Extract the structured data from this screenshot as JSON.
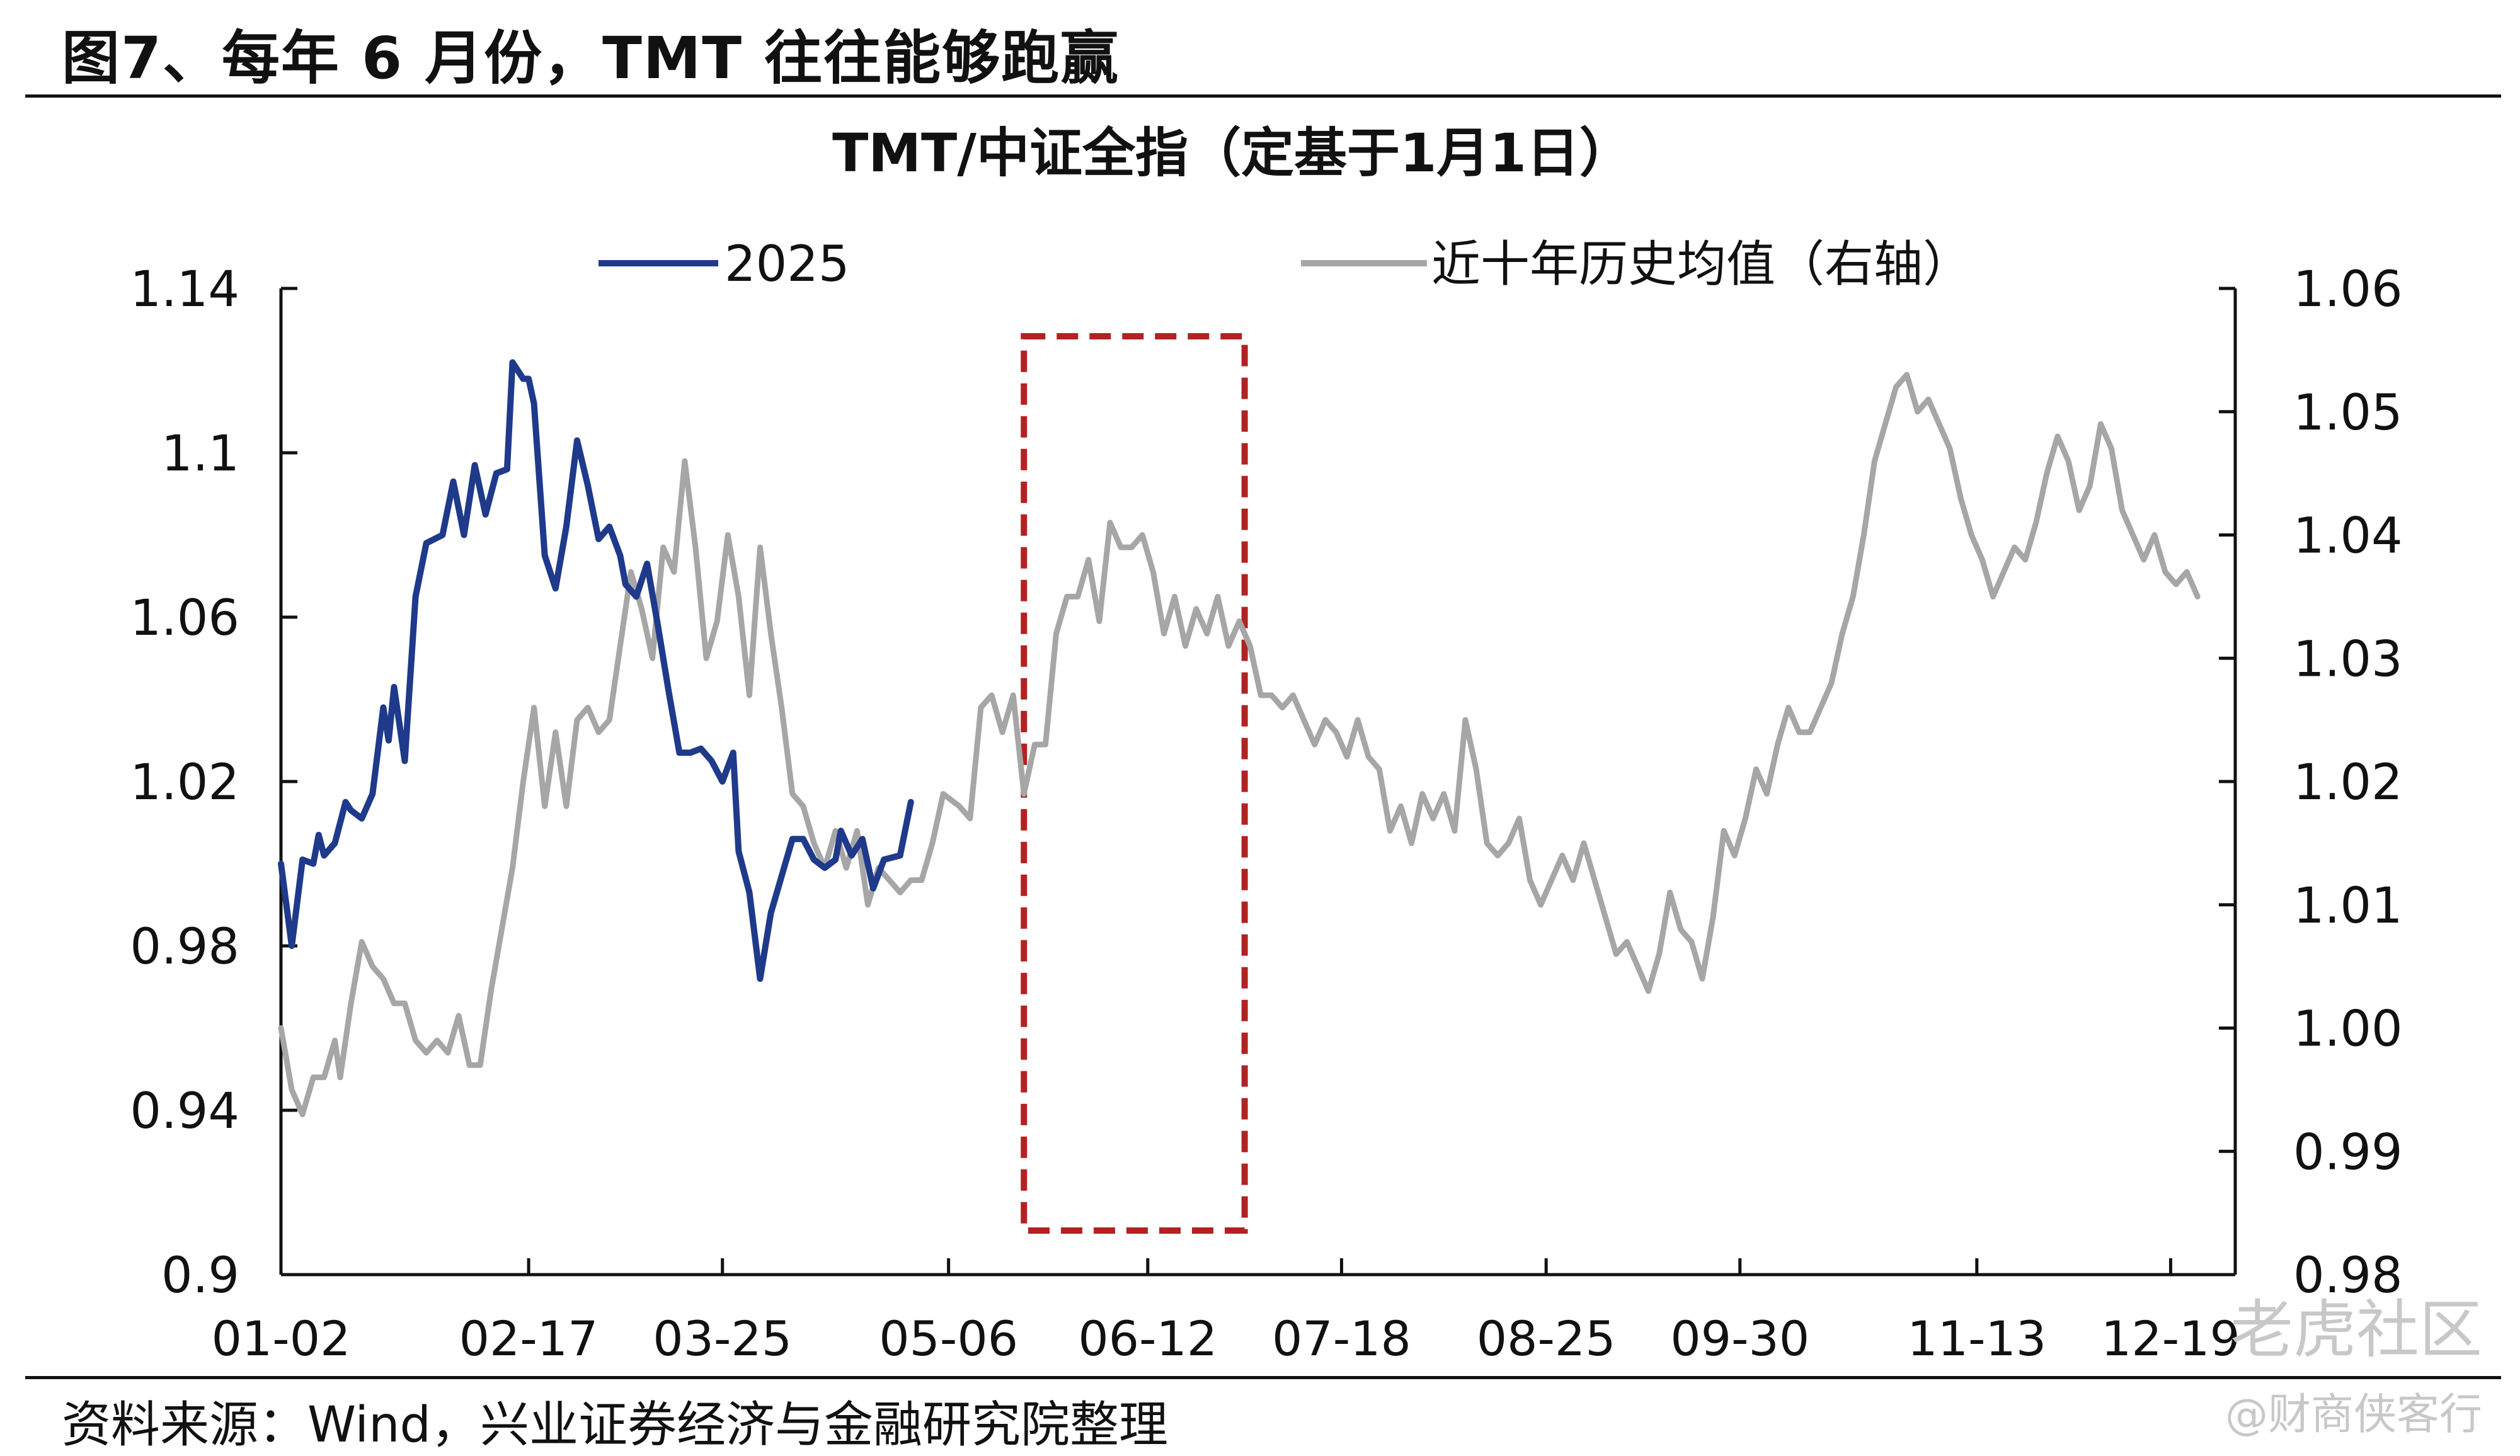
{
  "figure_title": "图7、每年 6 月份，TMT 往往能够跑赢",
  "source_note": "资料来源：Wind，兴业证券经济与金融研究院整理",
  "watermarks": {
    "line1": "老虎社区",
    "line2": "@财商侠客行"
  },
  "colors": {
    "series_2025": "#1f3a8a",
    "series_avg": "#a6a6a6",
    "highlight_box": "#b22222",
    "axis": "#111111"
  },
  "chart_data": {
    "type": "line",
    "title": "TMT/中证全指（定基于1月1日）",
    "x_ticks": [
      "01-02",
      "02-17",
      "03-25",
      "05-06",
      "06-12",
      "07-18",
      "08-25",
      "09-30",
      "11-13",
      "12-19"
    ],
    "y_left": {
      "ticks": [
        "1.14",
        "1.1",
        "1.06",
        "1.02",
        "0.98",
        "0.94",
        "0.9"
      ],
      "ylim": [
        0.9,
        1.14
      ]
    },
    "y_right": {
      "ticks": [
        "1.06",
        "1.05",
        "1.04",
        "1.03",
        "1.02",
        "1.01",
        "1.00",
        "0.99",
        "0.98"
      ],
      "ylim": [
        0.98,
        1.06
      ]
    },
    "legend": {
      "placement": "top",
      "entries": [
        "2025",
        "近十年历史均值（右轴）"
      ]
    },
    "highlight": {
      "x_range": [
        "05-20",
        "06-30"
      ]
    },
    "series": [
      {
        "name": "2025",
        "axis": "left",
        "points": [
          [
            "01-02",
            1.0
          ],
          [
            "01-04",
            0.98
          ],
          [
            "01-06",
            1.001
          ],
          [
            "01-08",
            1.0
          ],
          [
            "01-09",
            1.007
          ],
          [
            "01-10",
            1.002
          ],
          [
            "01-12",
            1.005
          ],
          [
            "01-14",
            1.015
          ],
          [
            "01-15",
            1.013
          ],
          [
            "01-17",
            1.011
          ],
          [
            "01-19",
            1.017
          ],
          [
            "01-21",
            1.038
          ],
          [
            "01-22",
            1.03
          ],
          [
            "01-23",
            1.043
          ],
          [
            "01-25",
            1.025
          ],
          [
            "01-27",
            1.065
          ],
          [
            "01-29",
            1.078
          ],
          [
            "02-01",
            1.08
          ],
          [
            "02-03",
            1.093
          ],
          [
            "02-05",
            1.08
          ],
          [
            "02-07",
            1.097
          ],
          [
            "02-09",
            1.085
          ],
          [
            "02-11",
            1.095
          ],
          [
            "02-13",
            1.096
          ],
          [
            "02-14",
            1.122
          ],
          [
            "02-16",
            1.118
          ],
          [
            "02-17",
            1.118
          ],
          [
            "02-18",
            1.112
          ],
          [
            "02-20",
            1.075
          ],
          [
            "02-22",
            1.067
          ],
          [
            "02-24",
            1.082
          ],
          [
            "02-26",
            1.103
          ],
          [
            "02-28",
            1.092
          ],
          [
            "03-02",
            1.079
          ],
          [
            "03-04",
            1.082
          ],
          [
            "03-06",
            1.075
          ],
          [
            "03-07",
            1.068
          ],
          [
            "03-09",
            1.065
          ],
          [
            "03-11",
            1.073
          ],
          [
            "03-13",
            1.058
          ],
          [
            "03-15",
            1.042
          ],
          [
            "03-17",
            1.027
          ],
          [
            "03-19",
            1.027
          ],
          [
            "03-21",
            1.028
          ],
          [
            "03-23",
            1.025
          ],
          [
            "03-25",
            1.02
          ],
          [
            "03-27",
            1.027
          ],
          [
            "03-28",
            1.003
          ],
          [
            "03-30",
            0.993
          ],
          [
            "04-01",
            0.972
          ],
          [
            "04-03",
            0.988
          ],
          [
            "04-05",
            0.997
          ],
          [
            "04-07",
            1.006
          ],
          [
            "04-09",
            1.006
          ],
          [
            "04-11",
            1.001
          ],
          [
            "04-13",
            0.999
          ],
          [
            "04-15",
            1.001
          ],
          [
            "04-16",
            1.008
          ],
          [
            "04-18",
            1.002
          ],
          [
            "04-20",
            1.006
          ],
          [
            "04-22",
            0.994
          ],
          [
            "04-24",
            1.001
          ],
          [
            "04-27",
            1.002
          ],
          [
            "04-29",
            1.015
          ]
        ]
      },
      {
        "name": "近十年历史均值（右轴）",
        "axis": "right",
        "points": [
          [
            "01-02",
            1.0
          ],
          [
            "01-04",
            0.995
          ],
          [
            "01-06",
            0.993
          ],
          [
            "01-08",
            0.996
          ],
          [
            "01-10",
            0.996
          ],
          [
            "01-12",
            0.999
          ],
          [
            "01-13",
            0.996
          ],
          [
            "01-15",
            1.002
          ],
          [
            "01-17",
            1.007
          ],
          [
            "01-19",
            1.005
          ],
          [
            "01-21",
            1.004
          ],
          [
            "01-23",
            1.002
          ],
          [
            "01-25",
            1.002
          ],
          [
            "01-27",
            0.999
          ],
          [
            "01-29",
            0.998
          ],
          [
            "01-31",
            0.999
          ],
          [
            "02-02",
            0.998
          ],
          [
            "02-04",
            1.001
          ],
          [
            "02-06",
            0.997
          ],
          [
            "02-08",
            0.997
          ],
          [
            "02-10",
            1.003
          ],
          [
            "02-12",
            1.008
          ],
          [
            "02-14",
            1.013
          ],
          [
            "02-16",
            1.02
          ],
          [
            "02-18",
            1.026
          ],
          [
            "02-20",
            1.018
          ],
          [
            "02-22",
            1.024
          ],
          [
            "02-24",
            1.018
          ],
          [
            "02-26",
            1.025
          ],
          [
            "02-28",
            1.026
          ],
          [
            "03-02",
            1.024
          ],
          [
            "03-04",
            1.025
          ],
          [
            "03-06",
            1.031
          ],
          [
            "03-08",
            1.037
          ],
          [
            "03-10",
            1.034
          ],
          [
            "03-12",
            1.03
          ],
          [
            "03-14",
            1.039
          ],
          [
            "03-16",
            1.037
          ],
          [
            "03-18",
            1.046
          ],
          [
            "03-20",
            1.039
          ],
          [
            "03-22",
            1.03
          ],
          [
            "03-24",
            1.033
          ],
          [
            "03-26",
            1.04
          ],
          [
            "03-28",
            1.035
          ],
          [
            "03-30",
            1.027
          ],
          [
            "04-01",
            1.039
          ],
          [
            "04-03",
            1.032
          ],
          [
            "04-05",
            1.026
          ],
          [
            "04-07",
            1.019
          ],
          [
            "04-09",
            1.018
          ],
          [
            "04-11",
            1.015
          ],
          [
            "04-13",
            1.013
          ],
          [
            "04-15",
            1.016
          ],
          [
            "04-17",
            1.013
          ],
          [
            "04-19",
            1.016
          ],
          [
            "04-21",
            1.01
          ],
          [
            "04-23",
            1.013
          ],
          [
            "04-25",
            1.012
          ],
          [
            "04-27",
            1.011
          ],
          [
            "04-29",
            1.012
          ],
          [
            "05-01",
            1.012
          ],
          [
            "05-03",
            1.015
          ],
          [
            "05-05",
            1.019
          ],
          [
            "05-08",
            1.018
          ],
          [
            "05-10",
            1.017
          ],
          [
            "05-12",
            1.026
          ],
          [
            "05-14",
            1.027
          ],
          [
            "05-16",
            1.024
          ],
          [
            "05-18",
            1.027
          ],
          [
            "05-20",
            1.019
          ],
          [
            "05-22",
            1.023
          ],
          [
            "05-24",
            1.023
          ],
          [
            "05-26",
            1.032
          ],
          [
            "05-28",
            1.035
          ],
          [
            "05-30",
            1.035
          ],
          [
            "06-01",
            1.038
          ],
          [
            "06-03",
            1.033
          ],
          [
            "06-05",
            1.041
          ],
          [
            "06-07",
            1.039
          ],
          [
            "06-09",
            1.039
          ],
          [
            "06-11",
            1.04
          ],
          [
            "06-13",
            1.037
          ],
          [
            "06-15",
            1.032
          ],
          [
            "06-17",
            1.035
          ],
          [
            "06-19",
            1.031
          ],
          [
            "06-21",
            1.034
          ],
          [
            "06-23",
            1.032
          ],
          [
            "06-25",
            1.035
          ],
          [
            "06-27",
            1.031
          ],
          [
            "06-29",
            1.033
          ],
          [
            "07-01",
            1.031
          ],
          [
            "07-03",
            1.027
          ],
          [
            "07-05",
            1.027
          ],
          [
            "07-07",
            1.026
          ],
          [
            "07-09",
            1.027
          ],
          [
            "07-11",
            1.025
          ],
          [
            "07-13",
            1.023
          ],
          [
            "07-15",
            1.025
          ],
          [
            "07-17",
            1.024
          ],
          [
            "07-19",
            1.022
          ],
          [
            "07-21",
            1.025
          ],
          [
            "07-23",
            1.022
          ],
          [
            "07-25",
            1.021
          ],
          [
            "07-27",
            1.016
          ],
          [
            "07-29",
            1.018
          ],
          [
            "07-31",
            1.015
          ],
          [
            "08-02",
            1.019
          ],
          [
            "08-04",
            1.017
          ],
          [
            "08-06",
            1.019
          ],
          [
            "08-08",
            1.016
          ],
          [
            "08-10",
            1.025
          ],
          [
            "08-12",
            1.021
          ],
          [
            "08-14",
            1.015
          ],
          [
            "08-16",
            1.014
          ],
          [
            "08-18",
            1.015
          ],
          [
            "08-20",
            1.017
          ],
          [
            "08-22",
            1.012
          ],
          [
            "08-24",
            1.01
          ],
          [
            "08-26",
            1.012
          ],
          [
            "08-28",
            1.014
          ],
          [
            "08-30",
            1.012
          ],
          [
            "09-01",
            1.015
          ],
          [
            "09-03",
            1.012
          ],
          [
            "09-05",
            1.009
          ],
          [
            "09-07",
            1.006
          ],
          [
            "09-09",
            1.007
          ],
          [
            "09-11",
            1.005
          ],
          [
            "09-13",
            1.003
          ],
          [
            "09-15",
            1.006
          ],
          [
            "09-17",
            1.011
          ],
          [
            "09-19",
            1.008
          ],
          [
            "09-21",
            1.007
          ],
          [
            "09-23",
            1.004
          ],
          [
            "09-25",
            1.009
          ],
          [
            "09-27",
            1.016
          ],
          [
            "09-29",
            1.014
          ],
          [
            "10-01",
            1.017
          ],
          [
            "10-03",
            1.021
          ],
          [
            "10-05",
            1.019
          ],
          [
            "10-07",
            1.023
          ],
          [
            "10-09",
            1.026
          ],
          [
            "10-11",
            1.024
          ],
          [
            "10-13",
            1.024
          ],
          [
            "10-15",
            1.026
          ],
          [
            "10-17",
            1.028
          ],
          [
            "10-19",
            1.032
          ],
          [
            "10-21",
            1.035
          ],
          [
            "10-23",
            1.04
          ],
          [
            "10-25",
            1.046
          ],
          [
            "10-27",
            1.049
          ],
          [
            "10-29",
            1.052
          ],
          [
            "10-31",
            1.053
          ],
          [
            "11-02",
            1.05
          ],
          [
            "11-04",
            1.051
          ],
          [
            "11-06",
            1.049
          ],
          [
            "11-08",
            1.047
          ],
          [
            "11-10",
            1.043
          ],
          [
            "11-12",
            1.04
          ],
          [
            "11-14",
            1.038
          ],
          [
            "11-16",
            1.035
          ],
          [
            "11-18",
            1.037
          ],
          [
            "11-20",
            1.039
          ],
          [
            "11-22",
            1.038
          ],
          [
            "11-24",
            1.041
          ],
          [
            "11-26",
            1.045
          ],
          [
            "11-28",
            1.048
          ],
          [
            "11-30",
            1.046
          ],
          [
            "12-02",
            1.042
          ],
          [
            "12-04",
            1.044
          ],
          [
            "12-06",
            1.049
          ],
          [
            "12-08",
            1.047
          ],
          [
            "12-10",
            1.042
          ],
          [
            "12-12",
            1.04
          ],
          [
            "12-14",
            1.038
          ],
          [
            "12-16",
            1.04
          ],
          [
            "12-18",
            1.037
          ],
          [
            "12-20",
            1.036
          ],
          [
            "12-22",
            1.037
          ],
          [
            "12-24",
            1.035
          ]
        ]
      }
    ]
  }
}
